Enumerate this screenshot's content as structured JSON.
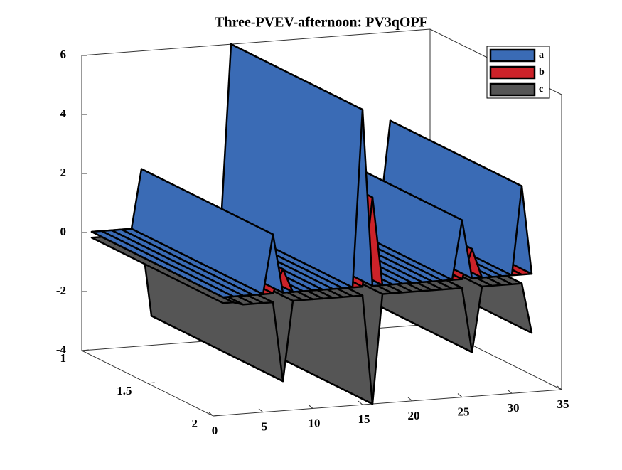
{
  "chart_data": {
    "type": "area3d",
    "title": "Three-PVEV-afternoon: PV3qOPF",
    "x": [
      1,
      2,
      3,
      4,
      5,
      6,
      7,
      8,
      9,
      10,
      11,
      12,
      13,
      14,
      15,
      16,
      17,
      18,
      19,
      20,
      21,
      22,
      23,
      24,
      25,
      26,
      27,
      28,
      29,
      30,
      31,
      32
    ],
    "series": [
      {
        "name": "a",
        "color": "#3a6bb5",
        "values": [
          0,
          0,
          0,
          0,
          0,
          2,
          0,
          0,
          0,
          0,
          0,
          0,
          0,
          0,
          6,
          0,
          0,
          0,
          0,
          0,
          0,
          0,
          0,
          0,
          2,
          0,
          0,
          0,
          0,
          0,
          3,
          0
        ]
      },
      {
        "name": "b",
        "color": "#cc2229",
        "values": [
          0,
          0,
          0,
          0,
          0,
          0,
          0.8,
          0,
          0,
          0,
          0,
          0,
          0,
          0,
          0,
          3,
          0,
          0,
          0,
          0,
          0,
          0,
          0,
          0,
          0,
          1,
          0,
          0,
          0,
          0,
          0,
          0
        ]
      },
      {
        "name": "c",
        "color": "#555555",
        "values": [
          -0.2,
          -0.2,
          -0.3,
          -0.3,
          -0.3,
          -0.3,
          -3,
          -0.3,
          -0.3,
          -0.3,
          -0.3,
          -0.3,
          -0.3,
          -0.3,
          -0.3,
          -4,
          -0.3,
          -0.3,
          -0.3,
          -0.3,
          -0.3,
          -0.3,
          -0.3,
          -0.3,
          -0.3,
          -2.5,
          -0.3,
          -0.3,
          -0.3,
          -0.3,
          -0.3,
          -2
        ]
      }
    ],
    "xlim": [
      0,
      35
    ],
    "xticks": [
      0,
      5,
      10,
      15,
      20,
      25,
      30,
      35
    ],
    "ylim": [
      1,
      2
    ],
    "yticks": [
      1,
      1.5,
      2
    ],
    "zlim": [
      -4,
      6
    ],
    "zticks": [
      -4,
      -2,
      0,
      2,
      4,
      6
    ],
    "legend": "northeast"
  }
}
